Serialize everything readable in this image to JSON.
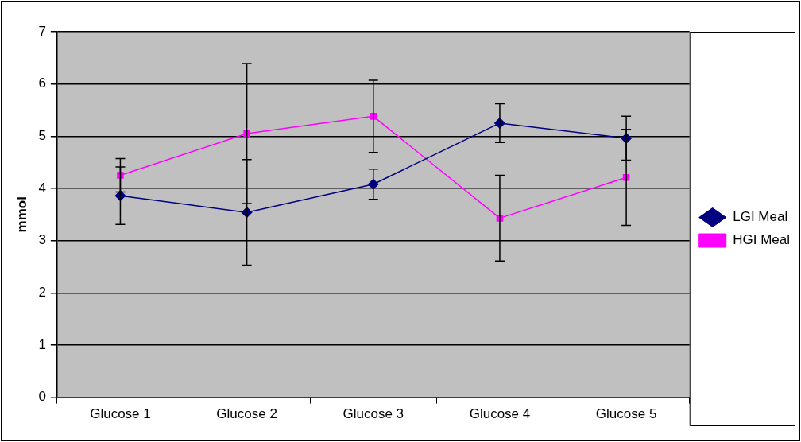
{
  "chart_data": {
    "type": "line",
    "ylabel": "mmol",
    "categories": [
      "Glucose 1",
      "Glucose 2",
      "Glucose 3",
      "Glucose 4",
      "Glucose 5"
    ],
    "series": [
      {
        "name": "LGI Meal",
        "color": "#000080",
        "marker": "diamond",
        "values": [
          3.86,
          3.54,
          4.08,
          5.25,
          4.96
        ],
        "errors": [
          0.55,
          1.01,
          0.29,
          0.37,
          0.42
        ]
      },
      {
        "name": "HGI Meal",
        "color": "#ff00ff",
        "marker": "square",
        "values": [
          4.25,
          5.05,
          5.38,
          3.43,
          4.21
        ],
        "errors": [
          0.32,
          1.34,
          0.69,
          0.82,
          0.92
        ]
      }
    ],
    "ylim": [
      0,
      7
    ],
    "yticks": [
      0,
      1,
      2,
      3,
      4,
      5,
      6,
      7
    ],
    "grid": "y",
    "legend": "right"
  }
}
